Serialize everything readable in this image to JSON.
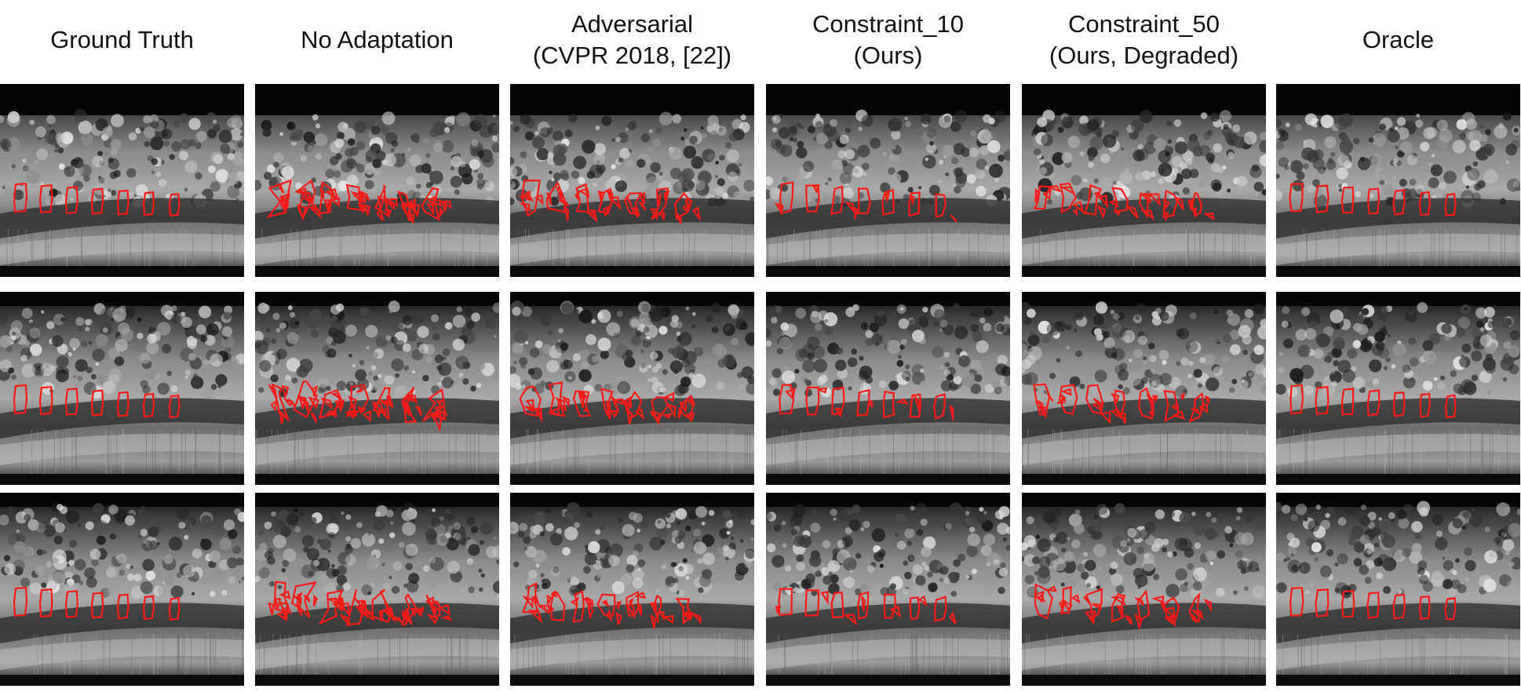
{
  "figure": {
    "columns": [
      {
        "id": "gt",
        "lines": [
          "Ground Truth"
        ]
      },
      {
        "id": "noadapt",
        "lines": [
          "No Adaptation"
        ]
      },
      {
        "id": "adv",
        "lines": [
          "Adversarial",
          "(CVPR 2018, [22])"
        ]
      },
      {
        "id": "c10",
        "lines": [
          "Constraint_10",
          "(Ours)"
        ]
      },
      {
        "id": "c50",
        "lines": [
          "Constraint_50",
          "(Ours, Degraded)"
        ]
      },
      {
        "id": "oracle",
        "lines": [
          "Oracle"
        ]
      }
    ],
    "rows": [
      {
        "id": "row-1",
        "scan": "sagittal spine MR slice with segmentation contour overlay"
      },
      {
        "id": "row-2",
        "scan": "sagittal spine MR slice with segmentation contour overlay"
      },
      {
        "id": "row-3",
        "scan": "sagittal spine MR slice with segmentation contour overlay"
      }
    ],
    "colors": {
      "contour": "#ff1a1a",
      "background": "#ffffff"
    }
  }
}
